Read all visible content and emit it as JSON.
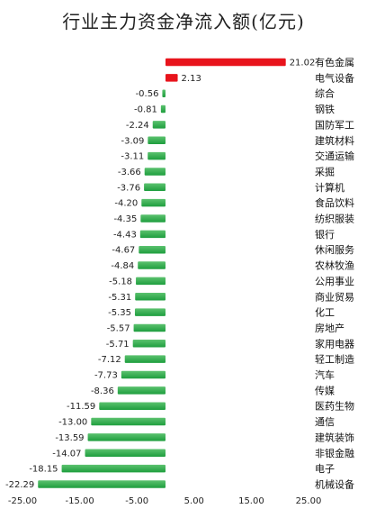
{
  "chart_data": {
    "type": "bar",
    "orientation": "horizontal",
    "title": "行业主力资金净流入额(亿元)",
    "xlabel": "",
    "ylabel": "",
    "xlim": [
      -25,
      25
    ],
    "xticks": [
      -25,
      -15,
      -5,
      5,
      15,
      25
    ],
    "xtick_labels": [
      "-25.00",
      "-15.00",
      "-5.00",
      "5.00",
      "15.00",
      "25.00"
    ],
    "grid": false,
    "legend": "none",
    "categories": [
      "有色金属",
      "电气设备",
      "综合",
      "钢铁",
      "国防军工",
      "建筑材料",
      "交通运输",
      "采掘",
      "计算机",
      "食品饮料",
      "纺织服装",
      "银行",
      "休闲服务",
      "农林牧渔",
      "公用事业",
      "商业贸易",
      "化工",
      "房地产",
      "家用电器",
      "轻工制造",
      "汽车",
      "传媒",
      "医药生物",
      "通信",
      "建筑装饰",
      "非银金融",
      "电子",
      "机械设备"
    ],
    "values": [
      21.02,
      2.13,
      -0.56,
      -0.81,
      -2.24,
      -3.09,
      -3.11,
      -3.66,
      -3.76,
      -4.2,
      -4.35,
      -4.43,
      -4.67,
      -4.84,
      -5.18,
      -5.31,
      -5.35,
      -5.57,
      -5.71,
      -7.12,
      -7.73,
      -8.36,
      -11.59,
      -13.0,
      -13.59,
      -14.07,
      -18.15,
      -22.29
    ],
    "value_labels": [
      "21.02",
      "2.13",
      "-0.56",
      "-0.81",
      "-2.24",
      "-3.09",
      "-3.11",
      "-3.66",
      "-3.76",
      "-4.20",
      "-4.35",
      "-4.43",
      "-4.67",
      "-4.84",
      "-5.18",
      "-5.31",
      "-5.35",
      "-5.57",
      "-5.71",
      "-7.12",
      "-7.73",
      "-8.36",
      "-11.59",
      "-13.00",
      "-13.59",
      "-14.07",
      "-18.15",
      "-22.29"
    ],
    "colors": {
      "positive": "#e8141c",
      "negative": "#1e9e3e",
      "negative_light": "#5cc26f"
    }
  }
}
